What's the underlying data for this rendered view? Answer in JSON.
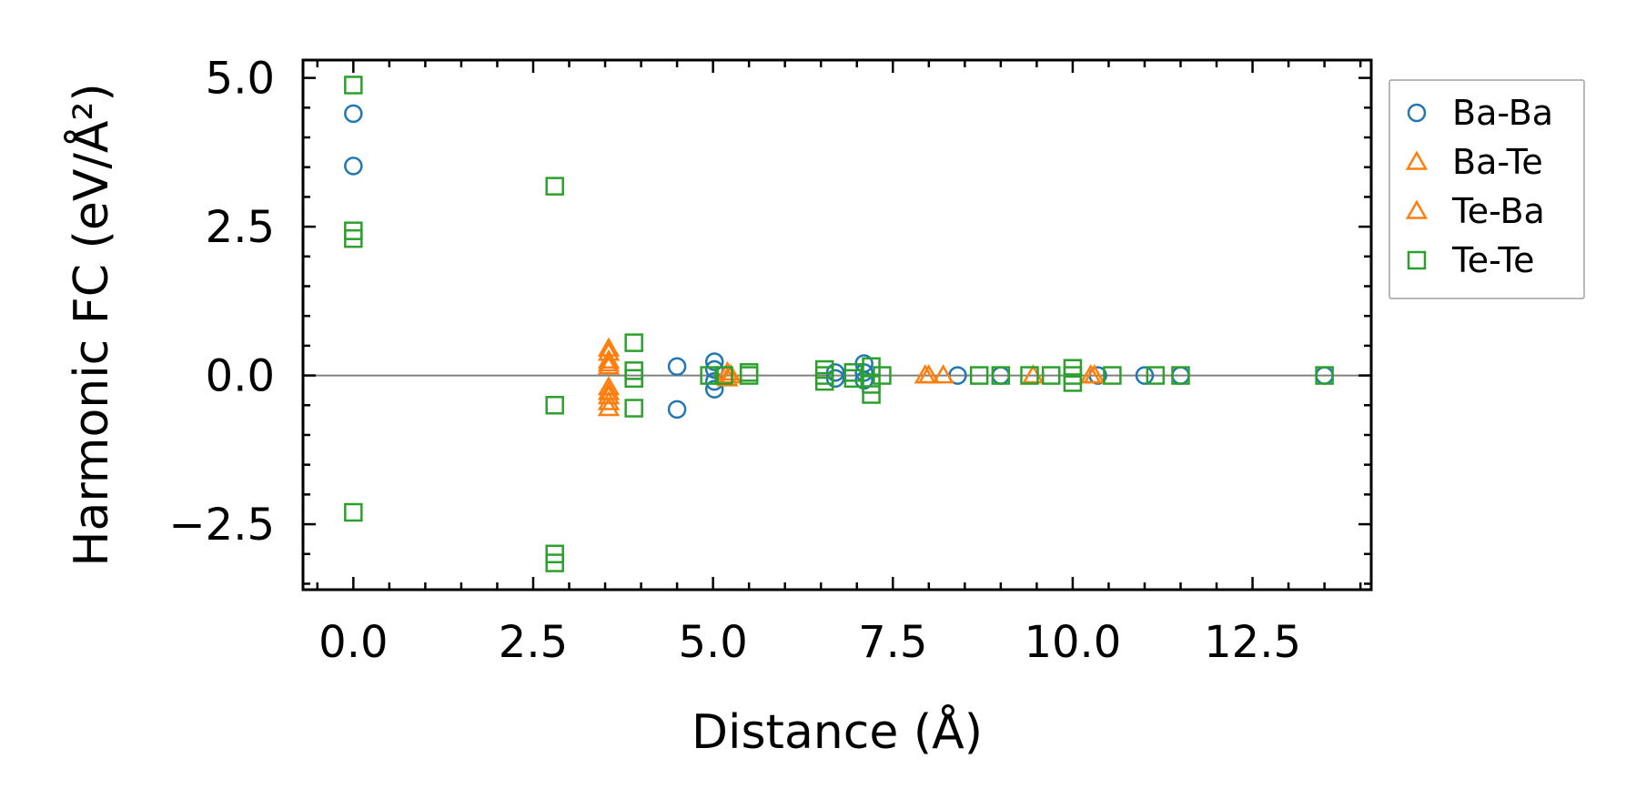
{
  "chart_data": {
    "type": "scatter",
    "title": "",
    "xlabel": "Distance (Å)",
    "ylabel": "Harmonic FC (eV/Å²)",
    "xlim": [
      -0.7,
      14.15
    ],
    "ylim": [
      -3.6,
      5.3
    ],
    "x_ticks": [
      0.0,
      2.5,
      5.0,
      7.5,
      10.0,
      12.5
    ],
    "x_tick_labels": [
      "0.0",
      "2.5",
      "5.0",
      "7.5",
      "10.0",
      "12.5"
    ],
    "y_ticks": [
      -2.5,
      0.0,
      2.5,
      5.0
    ],
    "y_tick_labels": [
      "−2.5",
      "0.0",
      "2.5",
      "5.0"
    ],
    "reference_line_y": 0,
    "grid": false,
    "legend_position": "outside-right-top",
    "series": [
      {
        "name": "Ba-Ba",
        "marker": "circle",
        "color": "#1f77b4",
        "points": [
          [
            0.0,
            4.4
          ],
          [
            0.0,
            3.52
          ],
          [
            4.5,
            0.15
          ],
          [
            4.5,
            -0.57
          ],
          [
            5.02,
            0.23
          ],
          [
            5.02,
            0.1
          ],
          [
            5.02,
            -0.1
          ],
          [
            5.02,
            -0.23
          ],
          [
            6.7,
            0.05
          ],
          [
            6.7,
            -0.05
          ],
          [
            7.1,
            0.2
          ],
          [
            7.1,
            0.05
          ],
          [
            7.1,
            -0.08
          ],
          [
            8.4,
            0.0
          ],
          [
            9.0,
            0.0
          ],
          [
            10.35,
            0.0
          ],
          [
            11.0,
            0.0
          ],
          [
            11.5,
            0.0
          ],
          [
            13.5,
            0.0
          ]
        ]
      },
      {
        "name": "Ba-Te",
        "marker": "triangle",
        "color": "#ff7f0e",
        "points": [
          [
            3.55,
            0.45
          ],
          [
            3.55,
            0.25
          ],
          [
            3.55,
            0.15
          ],
          [
            3.55,
            -0.2
          ],
          [
            3.55,
            -0.35
          ],
          [
            3.55,
            -0.55
          ],
          [
            5.25,
            0.0
          ],
          [
            7.95,
            0.0
          ],
          [
            8.2,
            0.0
          ],
          [
            9.45,
            0.0
          ],
          [
            10.25,
            0.0
          ]
        ]
      },
      {
        "name": "Te-Ba",
        "marker": "triangle",
        "color": "#ff7f0e",
        "points": [
          [
            3.55,
            0.38
          ],
          [
            3.55,
            0.2
          ],
          [
            3.55,
            -0.28
          ],
          [
            3.55,
            -0.45
          ],
          [
            5.2,
            0.05
          ],
          [
            5.2,
            -0.05
          ],
          [
            8.0,
            0.0
          ],
          [
            10.3,
            0.0
          ]
        ]
      },
      {
        "name": "Te-Te",
        "marker": "square",
        "color": "#2ca02c",
        "points": [
          [
            0.0,
            4.88
          ],
          [
            0.0,
            2.43
          ],
          [
            0.0,
            2.3
          ],
          [
            0.0,
            -2.3
          ],
          [
            2.8,
            3.18
          ],
          [
            2.8,
            -0.5
          ],
          [
            2.8,
            -3.0
          ],
          [
            2.8,
            -3.15
          ],
          [
            3.9,
            0.55
          ],
          [
            3.9,
            0.08
          ],
          [
            3.9,
            -0.05
          ],
          [
            3.9,
            -0.55
          ],
          [
            4.95,
            0.0
          ],
          [
            5.15,
            0.0
          ],
          [
            5.5,
            0.05
          ],
          [
            5.5,
            0.0
          ],
          [
            6.55,
            0.1
          ],
          [
            6.55,
            0.0
          ],
          [
            6.55,
            -0.1
          ],
          [
            6.95,
            0.05
          ],
          [
            6.95,
            -0.05
          ],
          [
            7.2,
            0.15
          ],
          [
            7.2,
            -0.15
          ],
          [
            7.2,
            -0.32
          ],
          [
            7.35,
            0.0
          ],
          [
            8.7,
            0.0
          ],
          [
            9.0,
            0.0
          ],
          [
            9.4,
            0.0
          ],
          [
            9.7,
            0.0
          ],
          [
            10.0,
            0.12
          ],
          [
            10.0,
            0.0
          ],
          [
            10.0,
            -0.12
          ],
          [
            10.55,
            0.0
          ],
          [
            11.15,
            0.0
          ],
          [
            11.5,
            0.0
          ],
          [
            13.5,
            0.0
          ]
        ]
      }
    ]
  }
}
